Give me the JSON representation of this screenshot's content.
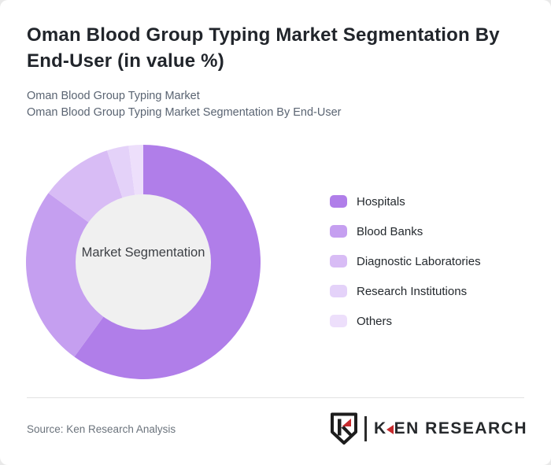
{
  "page": {
    "title": "Oman Blood Group Typing Market Segmentation By End-User (in value %)",
    "subtitle_line1": "Oman Blood Group Typing Market",
    "subtitle_line2": "Oman Blood Group Typing Market Segmentation By End-User",
    "source": "Source: Ken Research Analysis"
  },
  "logo": {
    "name": "ken-research-logo",
    "wordmark_k": "K",
    "wordmark_rest": "EN RESEARCH",
    "accent_color": "#c62a2d",
    "ink_color": "#26292c"
  },
  "chart_data": {
    "type": "pie",
    "variant": "donut",
    "title": "Oman Blood Group Typing Market Segmentation By End-User (in value %)",
    "center_label": "Market Segmentation",
    "categories": [
      "Hospitals",
      "Blood Banks",
      "Diagnostic Laboratories",
      "Research Institutions",
      "Others"
    ],
    "values": [
      60,
      25,
      10,
      3,
      2
    ],
    "unit": "value %",
    "colors": [
      "#b07ee9",
      "#c59ff0",
      "#d8bcf5",
      "#e4d2f9",
      "#eddffb"
    ],
    "start_angle_deg": 0,
    "direction": "clockwise",
    "legend_position": "right",
    "outer_radius_px": 149,
    "inner_radius_px": 86,
    "center_fill": "#f0f0f0",
    "center_label_color": "#3d4045"
  }
}
